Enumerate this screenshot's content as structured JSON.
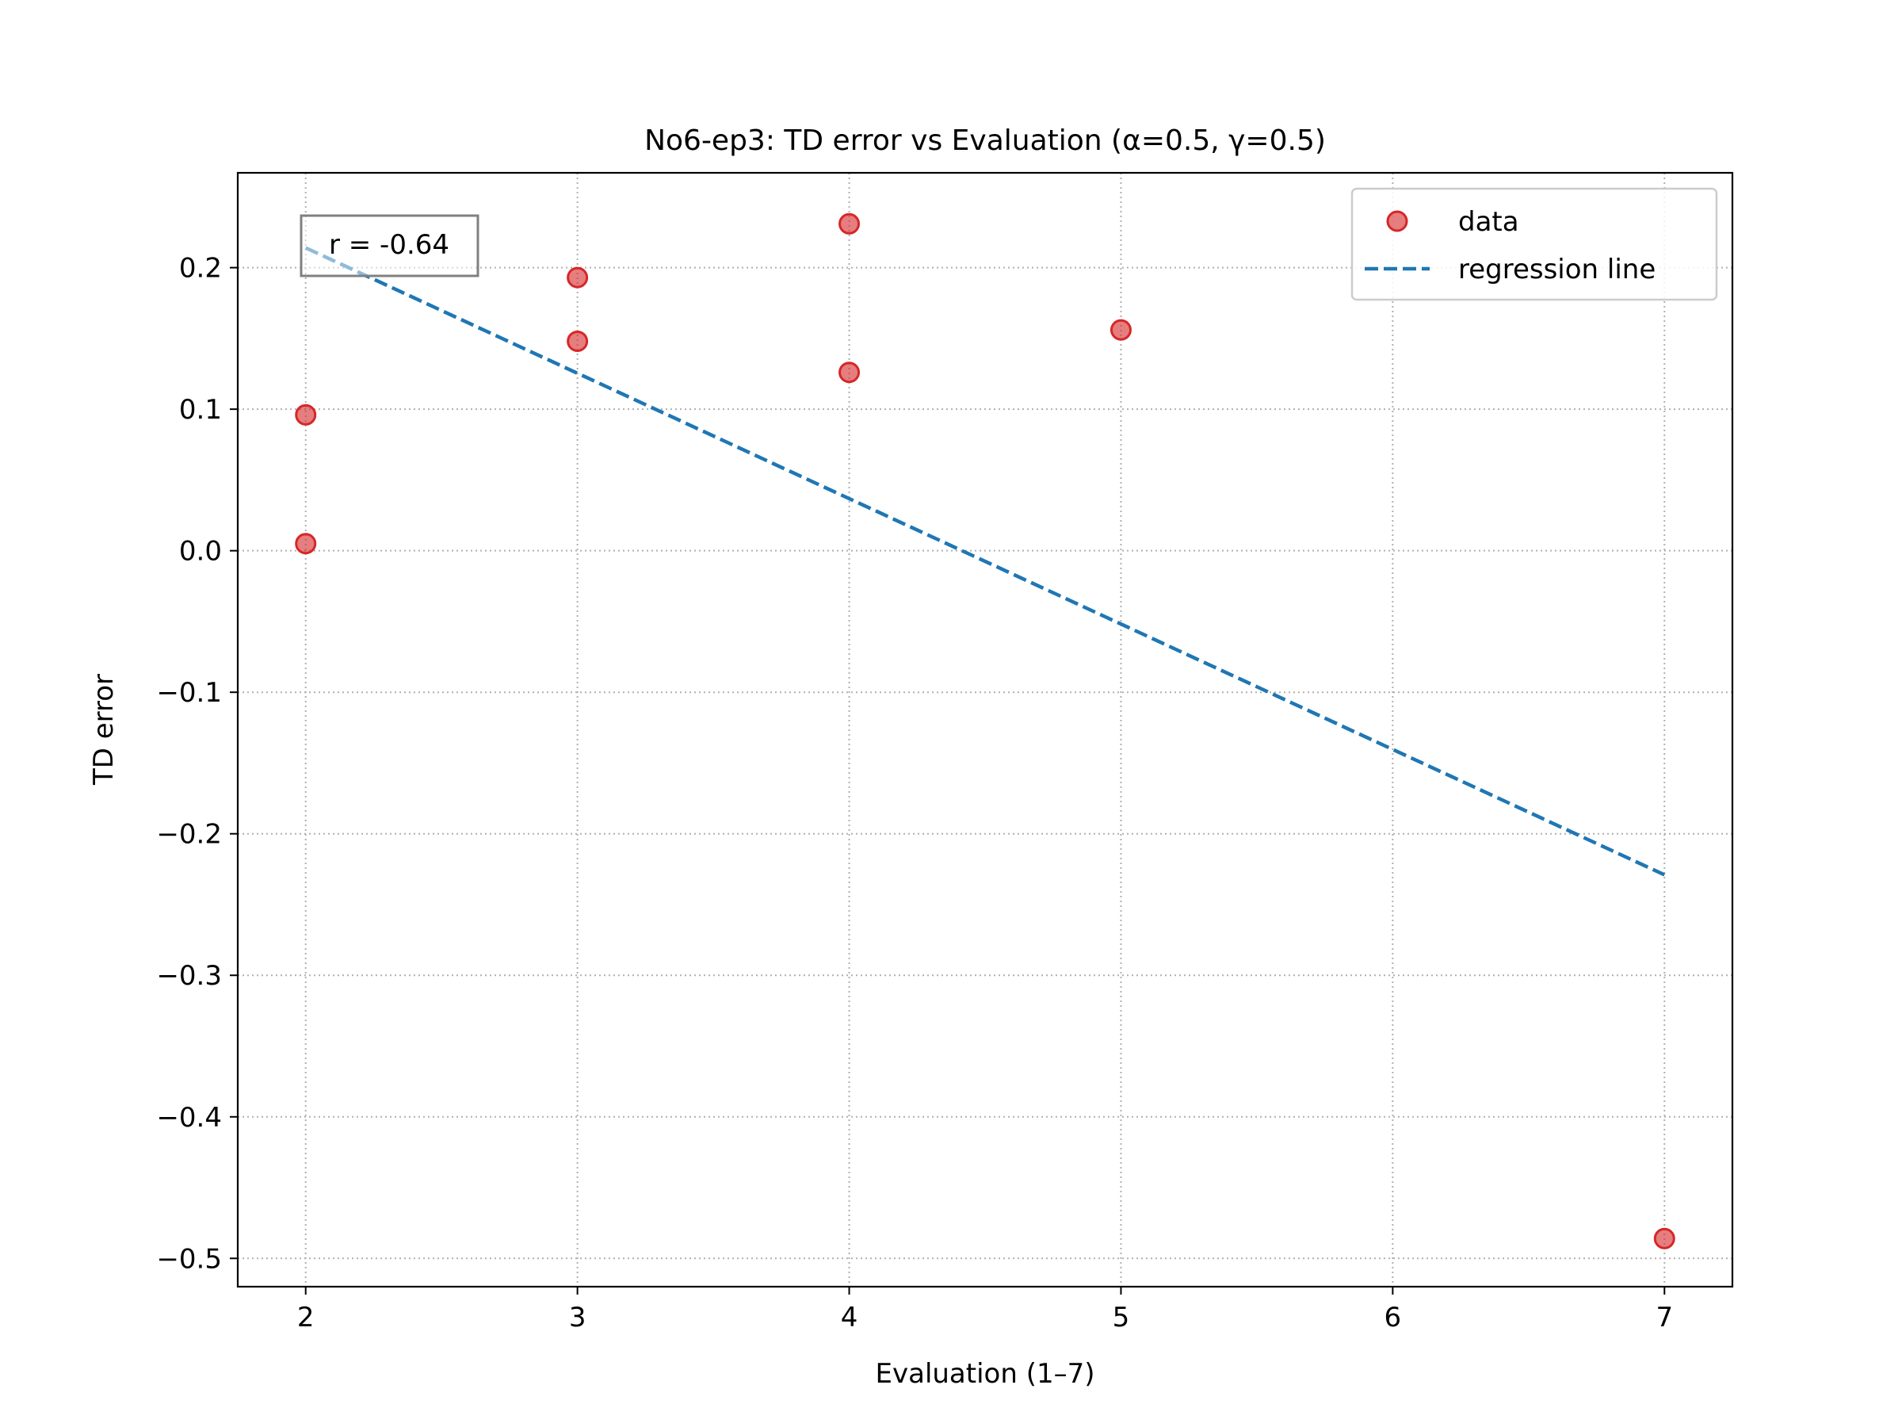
{
  "chart_data": {
    "type": "scatter",
    "title": "No6-ep3: TD error vs Evaluation (α=0.5, γ=0.5)",
    "xlabel": "Evaluation (1–7)",
    "ylabel": "TD error",
    "xlim": [
      1.75,
      7.25
    ],
    "ylim": [
      -0.52,
      0.267
    ],
    "grid": true,
    "xticks": [
      2,
      3,
      4,
      5,
      6,
      7
    ],
    "xtick_labels": [
      "2",
      "3",
      "4",
      "5",
      "6",
      "7"
    ],
    "yticks": [
      0.2,
      0.1,
      0.0,
      -0.1,
      -0.2,
      -0.3,
      -0.4,
      -0.5
    ],
    "ytick_labels": [
      "0.2",
      "0.1",
      "0.0",
      "−0.1",
      "−0.2",
      "−0.3",
      "−0.4",
      "−0.5"
    ],
    "series": [
      {
        "name": "data",
        "kind": "scatter",
        "color": "#d62728",
        "x": [
          2,
          2,
          3,
          3,
          4,
          4,
          5,
          7
        ],
        "y": [
          0.096,
          0.005,
          0.193,
          0.148,
          0.231,
          0.126,
          0.156,
          -0.486
        ]
      },
      {
        "name": "regression line",
        "kind": "line",
        "style": "dashed",
        "color": "#1f77b4",
        "x": [
          2,
          7
        ],
        "y": [
          0.214,
          -0.229
        ]
      }
    ],
    "annotation": {
      "text": "r = -0.64",
      "placement": "top-left"
    },
    "legend": {
      "placement": "upper right",
      "entries": [
        "data",
        "regression line"
      ]
    }
  }
}
